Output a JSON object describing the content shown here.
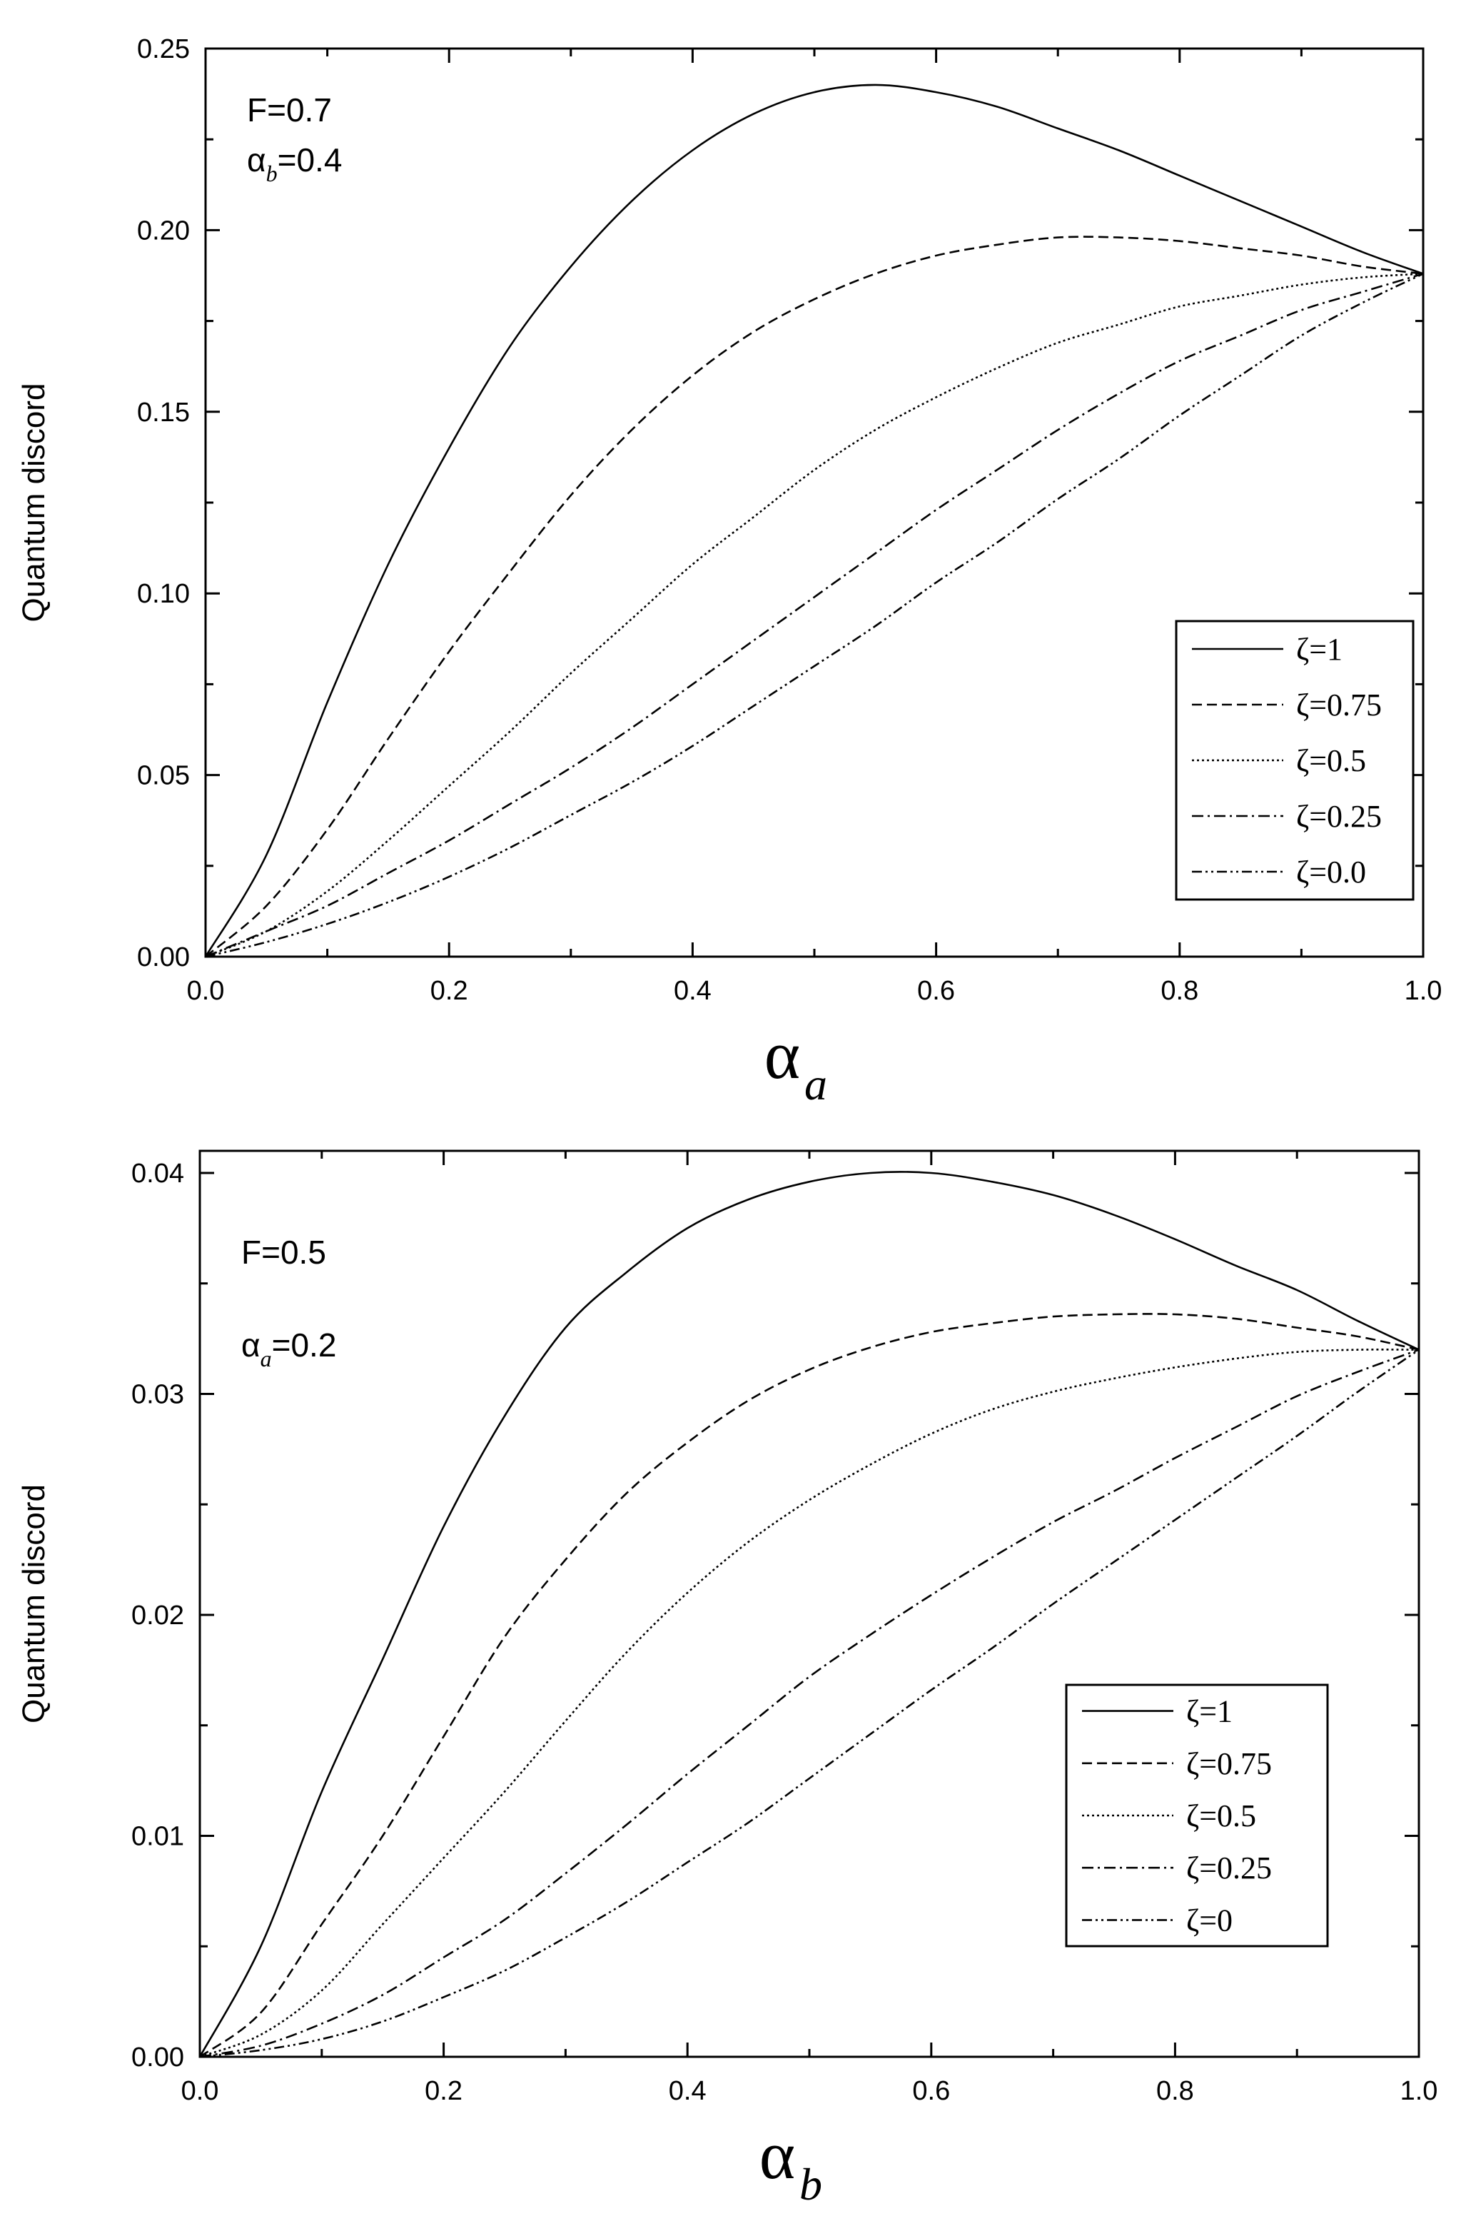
{
  "chart_data": [
    {
      "type": "line",
      "ylabel": "Quantum discord",
      "xlabel_main": "α",
      "xlabel_sub": "a",
      "xlim": [
        0.0,
        1.0
      ],
      "ylim": [
        0.0,
        0.25
      ],
      "xticks": [
        "0.0",
        "0.2",
        "0.4",
        "0.6",
        "0.8",
        "1.0"
      ],
      "yticks": [
        "0.00",
        "0.05",
        "0.10",
        "0.15",
        "0.20",
        "0.25"
      ],
      "annotations": [
        {
          "main": "F=0.7",
          "sub": "",
          "rest": ""
        },
        {
          "main": "α",
          "sub": "b",
          "rest": "=0.4"
        }
      ],
      "legend_position": "lower-right",
      "x": [
        0.0,
        0.05,
        0.1,
        0.15,
        0.2,
        0.25,
        0.3,
        0.35,
        0.4,
        0.45,
        0.5,
        0.55,
        0.6,
        0.65,
        0.7,
        0.75,
        0.8,
        0.85,
        0.9,
        0.95,
        1.0
      ],
      "series": [
        {
          "name": "ζ=1",
          "dash": "solid",
          "values": [
            0.0,
            0.028,
            0.07,
            0.108,
            0.14,
            0.168,
            0.19,
            0.208,
            0.222,
            0.232,
            0.238,
            0.24,
            0.238,
            0.234,
            0.228,
            0.222,
            0.215,
            0.208,
            0.201,
            0.194,
            0.188
          ]
        },
        {
          "name": "ζ=0.75",
          "dash": "dashed",
          "values": [
            0.0,
            0.014,
            0.035,
            0.06,
            0.084,
            0.106,
            0.127,
            0.145,
            0.16,
            0.172,
            0.181,
            0.188,
            0.193,
            0.196,
            0.198,
            0.198,
            0.197,
            0.195,
            0.193,
            0.19,
            0.188
          ]
        },
        {
          "name": "ζ=0.5",
          "dash": "dotted",
          "values": [
            0.0,
            0.007,
            0.018,
            0.032,
            0.047,
            0.062,
            0.078,
            0.093,
            0.108,
            0.121,
            0.134,
            0.145,
            0.154,
            0.162,
            0.169,
            0.174,
            0.179,
            0.182,
            0.185,
            0.187,
            0.188
          ]
        },
        {
          "name": "ζ=0.25",
          "dash": "dashdot",
          "values": [
            0.0,
            0.007,
            0.014,
            0.023,
            0.032,
            0.042,
            0.052,
            0.063,
            0.075,
            0.087,
            0.099,
            0.111,
            0.123,
            0.134,
            0.145,
            0.155,
            0.164,
            0.171,
            0.178,
            0.183,
            0.188
          ]
        },
        {
          "name": "ζ=0.0",
          "dash": "dashdotdot",
          "values": [
            0.0,
            0.004,
            0.009,
            0.015,
            0.022,
            0.03,
            0.039,
            0.048,
            0.058,
            0.069,
            0.08,
            0.091,
            0.103,
            0.114,
            0.126,
            0.137,
            0.149,
            0.16,
            0.171,
            0.18,
            0.188
          ]
        }
      ]
    },
    {
      "type": "line",
      "ylabel": "Quantum discord",
      "xlabel_main": "α",
      "xlabel_sub": "b",
      "xlim": [
        0.0,
        1.0
      ],
      "ylim": [
        0.0,
        0.041
      ],
      "xticks": [
        "0.0",
        "0.2",
        "0.4",
        "0.6",
        "0.8",
        "1.0"
      ],
      "yticks": [
        "0.00",
        "0.01",
        "0.02",
        "0.03",
        "0.04"
      ],
      "annotations": [
        {
          "main": "F=0.5",
          "sub": "",
          "rest": ""
        },
        {
          "main": "α",
          "sub": "a",
          "rest": "=0.2"
        }
      ],
      "legend_position": "lower-right",
      "x": [
        0.0,
        0.05,
        0.1,
        0.15,
        0.2,
        0.25,
        0.3,
        0.35,
        0.4,
        0.45,
        0.5,
        0.55,
        0.6,
        0.65,
        0.7,
        0.75,
        0.8,
        0.85,
        0.9,
        0.95,
        1.0
      ],
      "series": [
        {
          "name": "ζ=1",
          "dash": "solid",
          "values": [
            0.0,
            0.005,
            0.012,
            0.018,
            0.024,
            0.029,
            0.033,
            0.0355,
            0.0375,
            0.0388,
            0.0396,
            0.04,
            0.04,
            0.0396,
            0.039,
            0.0381,
            0.037,
            0.0358,
            0.0347,
            0.0333,
            0.032
          ]
        },
        {
          "name": "ζ=0.75",
          "dash": "dashed",
          "values": [
            0.0,
            0.002,
            0.006,
            0.01,
            0.0145,
            0.019,
            0.0225,
            0.0255,
            0.0278,
            0.0297,
            0.0311,
            0.0321,
            0.0328,
            0.0332,
            0.0335,
            0.0336,
            0.0336,
            0.0334,
            0.033,
            0.0326,
            0.032
          ]
        },
        {
          "name": "ζ=0.5",
          "dash": "dotted",
          "values": [
            0.0,
            0.001,
            0.003,
            0.006,
            0.009,
            0.012,
            0.0152,
            0.0183,
            0.021,
            0.0233,
            0.0252,
            0.0268,
            0.0282,
            0.0293,
            0.0301,
            0.0307,
            0.0312,
            0.0316,
            0.0319,
            0.032,
            0.032
          ]
        },
        {
          "name": "ζ=0.25",
          "dash": "dashdot",
          "values": [
            0.0,
            0.0005,
            0.0015,
            0.0028,
            0.0045,
            0.0062,
            0.0083,
            0.0105,
            0.0128,
            0.015,
            0.0172,
            0.0191,
            0.0209,
            0.0226,
            0.0242,
            0.0256,
            0.0271,
            0.0285,
            0.0299,
            0.031,
            0.032
          ]
        },
        {
          "name": "ζ=0",
          "dash": "dashdotdot",
          "values": [
            0.0,
            0.0003,
            0.0008,
            0.0016,
            0.0027,
            0.0039,
            0.0054,
            0.007,
            0.0088,
            0.0106,
            0.0126,
            0.0146,
            0.0166,
            0.0185,
            0.0205,
            0.0224,
            0.0243,
            0.0262,
            0.0281,
            0.0301,
            0.032
          ]
        }
      ]
    }
  ]
}
